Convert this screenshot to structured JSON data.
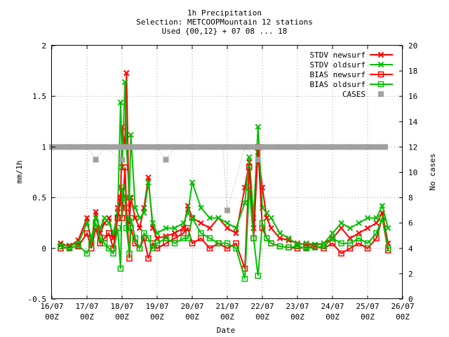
{
  "chart_data": {
    "type": "line",
    "title_lines": [
      "1h Precipitation",
      "Selection: METCOOPMountain     12 stations",
      "Used {00,12} + 07 08 ... 18"
    ],
    "xlabel": "Date",
    "ylabel": "mm/1h",
    "y2label": "No cases",
    "x_ticks": [
      {
        "d": "16/07",
        "h": "00Z"
      },
      {
        "d": "17/07",
        "h": "00Z"
      },
      {
        "d": "18/07",
        "h": "00Z"
      },
      {
        "d": "19/07",
        "h": "00Z"
      },
      {
        "d": "20/07",
        "h": "00Z"
      },
      {
        "d": "21/07",
        "h": "00Z"
      },
      {
        "d": "22/07",
        "h": "00Z"
      },
      {
        "d": "23/07",
        "h": "00Z"
      },
      {
        "d": "24/07",
        "h": "00Z"
      },
      {
        "d": "25/07",
        "h": "00Z"
      },
      {
        "d": "26/07",
        "h": "00Z"
      }
    ],
    "xlim": [
      "16/07 00Z",
      "26/07 00Z"
    ],
    "ylim": [
      -0.5,
      2
    ],
    "y_ticks": [
      "-0.5",
      "0",
      "0.5",
      "1",
      "1.5",
      "2"
    ],
    "y2lim": [
      0,
      20
    ],
    "y2_ticks": [
      "0",
      "2",
      "4",
      "6",
      "8",
      "10",
      "12",
      "14",
      "16",
      "18",
      "20"
    ],
    "grid": true,
    "legend_position": "top-right",
    "series": [
      {
        "name": "STDV newsurf",
        "color": "#ff0000",
        "marker": "x",
        "x": [
          "16/07 06Z",
          "16/07 12Z",
          "16/07 18Z",
          "17/07 00Z",
          "17/07 03Z",
          "17/07 06Z",
          "17/07 09Z",
          "17/07 12Z",
          "17/07 15Z",
          "17/07 18Z",
          "17/07 21Z",
          "17/07 23Z",
          "18/07 00Z",
          "18/07 02Z",
          "18/07 03Z",
          "18/07 05Z",
          "18/07 06Z",
          "18/07 09Z",
          "18/07 12Z",
          "18/07 15Z",
          "18/07 18Z",
          "18/07 21Z",
          "19/07 00Z",
          "19/07 06Z",
          "19/07 12Z",
          "19/07 18Z",
          "19/07 21Z",
          "20/07 00Z",
          "20/07 06Z",
          "20/07 12Z",
          "20/07 18Z",
          "21/07 00Z",
          "21/07 06Z",
          "21/07 12Z",
          "21/07 15Z",
          "21/07 18Z",
          "21/07 21Z",
          "22/07 00Z",
          "22/07 03Z",
          "22/07 06Z",
          "22/07 12Z",
          "22/07 18Z",
          "23/07 00Z",
          "23/07 06Z",
          "23/07 12Z",
          "23/07 18Z",
          "24/07 00Z",
          "24/07 06Z",
          "24/07 12Z",
          "24/07 18Z",
          "25/07 00Z",
          "25/07 06Z",
          "25/07 10Z",
          "25/07 14Z"
        ],
        "y": [
          0.05,
          0.02,
          0.08,
          0.3,
          0.05,
          0.36,
          0.15,
          0.25,
          0.3,
          0.1,
          0.4,
          0.5,
          1.2,
          1.0,
          1.73,
          0.25,
          0.5,
          0.3,
          0.2,
          0.4,
          0.7,
          0.2,
          0.1,
          0.12,
          0.15,
          0.2,
          0.42,
          0.3,
          0.25,
          0.2,
          0.3,
          0.2,
          0.15,
          0.6,
          0.85,
          0.2,
          0.95,
          0.6,
          0.3,
          0.2,
          0.1,
          0.08,
          0.05,
          0.04,
          0.03,
          0.05,
          0.1,
          0.2,
          0.1,
          0.15,
          0.2,
          0.25,
          0.35,
          0.05
        ]
      },
      {
        "name": "STDV oldsurf",
        "color": "#00c000",
        "marker": "x",
        "x": [
          "16/07 06Z",
          "16/07 12Z",
          "16/07 18Z",
          "17/07 00Z",
          "17/07 03Z",
          "17/07 06Z",
          "17/07 09Z",
          "17/07 12Z",
          "17/07 15Z",
          "17/07 18Z",
          "17/07 21Z",
          "17/07 23Z",
          "18/07 00Z",
          "18/07 02Z",
          "18/07 03Z",
          "18/07 05Z",
          "18/07 06Z",
          "18/07 09Z",
          "18/07 12Z",
          "18/07 15Z",
          "18/07 18Z",
          "18/07 21Z",
          "19/07 00Z",
          "19/07 06Z",
          "19/07 12Z",
          "19/07 18Z",
          "19/07 21Z",
          "20/07 00Z",
          "20/07 06Z",
          "20/07 12Z",
          "20/07 18Z",
          "21/07 00Z",
          "21/07 06Z",
          "21/07 12Z",
          "21/07 15Z",
          "21/07 18Z",
          "21/07 21Z",
          "22/07 00Z",
          "22/07 03Z",
          "22/07 06Z",
          "22/07 12Z",
          "22/07 18Z",
          "23/07 00Z",
          "23/07 06Z",
          "23/07 12Z",
          "23/07 18Z",
          "24/07 00Z",
          "24/07 06Z",
          "24/07 12Z",
          "24/07 18Z",
          "25/07 00Z",
          "25/07 06Z",
          "25/07 10Z",
          "25/07 14Z"
        ],
        "y": [
          0.03,
          0.03,
          0.05,
          0.25,
          0.1,
          0.3,
          0.2,
          0.3,
          0.25,
          0.15,
          0.35,
          1.44,
          0.8,
          1.64,
          1.0,
          0.5,
          1.12,
          0.4,
          0.3,
          0.35,
          0.65,
          0.25,
          0.15,
          0.2,
          0.2,
          0.25,
          0.35,
          0.65,
          0.4,
          0.3,
          0.3,
          0.25,
          0.2,
          0.45,
          0.9,
          0.3,
          1.2,
          0.4,
          0.35,
          0.3,
          0.15,
          0.1,
          0.04,
          0.05,
          0.04,
          0.05,
          0.15,
          0.25,
          0.2,
          0.25,
          0.3,
          0.3,
          0.42,
          0.2
        ]
      },
      {
        "name": "BIAS newsurf",
        "color": "#ff0000",
        "marker": "box",
        "x": [
          "16/07 06Z",
          "16/07 12Z",
          "16/07 18Z",
          "17/07 00Z",
          "17/07 03Z",
          "17/07 06Z",
          "17/07 09Z",
          "17/07 12Z",
          "17/07 15Z",
          "17/07 18Z",
          "17/07 21Z",
          "17/07 23Z",
          "18/07 00Z",
          "18/07 02Z",
          "18/07 03Z",
          "18/07 05Z",
          "18/07 06Z",
          "18/07 09Z",
          "18/07 12Z",
          "18/07 15Z",
          "18/07 18Z",
          "18/07 21Z",
          "19/07 00Z",
          "19/07 06Z",
          "19/07 12Z",
          "19/07 18Z",
          "19/07 21Z",
          "20/07 00Z",
          "20/07 06Z",
          "20/07 12Z",
          "20/07 18Z",
          "21/07 00Z",
          "21/07 06Z",
          "21/07 12Z",
          "21/07 15Z",
          "21/07 18Z",
          "21/07 21Z",
          "22/07 00Z",
          "22/07 03Z",
          "22/07 06Z",
          "22/07 12Z",
          "22/07 18Z",
          "23/07 00Z",
          "23/07 06Z",
          "23/07 12Z",
          "23/07 18Z",
          "24/07 00Z",
          "24/07 06Z",
          "24/07 12Z",
          "24/07 18Z",
          "25/07 00Z",
          "25/07 06Z",
          "25/07 10Z",
          "25/07 14Z"
        ],
        "y": [
          0.0,
          0.01,
          0.02,
          0.15,
          0.0,
          0.2,
          0.05,
          0.1,
          0.15,
          0.0,
          0.3,
          0.5,
          0.3,
          0.8,
          0.4,
          -0.1,
          0.2,
          0.05,
          0.0,
          0.1,
          -0.1,
          0.05,
          0.0,
          0.05,
          0.1,
          0.15,
          0.2,
          0.05,
          0.1,
          0.0,
          0.05,
          0.0,
          0.05,
          -0.2,
          0.8,
          0.1,
          1.0,
          0.2,
          0.1,
          0.05,
          0.02,
          0.01,
          0.0,
          0.01,
          0.02,
          0.0,
          0.05,
          -0.05,
          0.0,
          0.05,
          0.0,
          0.1,
          0.3,
          -0.02
        ]
      },
      {
        "name": "BIAS oldsurf",
        "color": "#00c000",
        "marker": "box",
        "x": [
          "16/07 06Z",
          "16/07 12Z",
          "16/07 18Z",
          "17/07 00Z",
          "17/07 03Z",
          "17/07 06Z",
          "17/07 09Z",
          "17/07 12Z",
          "17/07 15Z",
          "17/07 18Z",
          "17/07 21Z",
          "17/07 23Z",
          "18/07 00Z",
          "18/07 02Z",
          "18/07 03Z",
          "18/07 05Z",
          "18/07 06Z",
          "18/07 09Z",
          "18/07 12Z",
          "18/07 15Z",
          "18/07 18Z",
          "18/07 21Z",
          "19/07 00Z",
          "19/07 06Z",
          "19/07 12Z",
          "19/07 18Z",
          "19/07 21Z",
          "20/07 00Z",
          "20/07 06Z",
          "20/07 12Z",
          "20/07 18Z",
          "21/07 00Z",
          "21/07 06Z",
          "21/07 12Z",
          "21/07 15Z",
          "21/07 18Z",
          "21/07 21Z",
          "22/07 00Z",
          "22/07 03Z",
          "22/07 06Z",
          "22/07 12Z",
          "22/07 18Z",
          "23/07 00Z",
          "23/07 06Z",
          "23/07 12Z",
          "23/07 18Z",
          "24/07 00Z",
          "24/07 06Z",
          "24/07 12Z",
          "24/07 18Z",
          "25/07 00Z",
          "25/07 06Z",
          "25/07 10Z",
          "25/07 14Z"
        ],
        "y": [
          0.02,
          0.0,
          0.03,
          -0.05,
          0.05,
          0.25,
          0.1,
          0.05,
          0.0,
          -0.05,
          0.2,
          -0.2,
          0.6,
          0.5,
          0.2,
          -0.05,
          0.3,
          0.1,
          0.0,
          0.15,
          0.1,
          0.0,
          0.05,
          0.1,
          0.05,
          0.1,
          0.1,
          0.3,
          0.15,
          0.1,
          0.05,
          0.05,
          0.0,
          -0.3,
          0.6,
          0.1,
          -0.27,
          0.25,
          0.1,
          0.05,
          0.02,
          0.01,
          0.02,
          0.0,
          0.01,
          0.02,
          0.1,
          0.05,
          0.05,
          0.1,
          0.05,
          0.15,
          0.3,
          0.0
        ]
      },
      {
        "name": "CASES",
        "color": "#a0a0a0",
        "marker": "filled-box",
        "axis": "y2",
        "x": [
          "16/07 00Z",
          "16/07 12Z",
          "17/07 00Z",
          "17/07 06Z",
          "17/07 12Z",
          "18/07 00Z",
          "18/07 12Z",
          "19/07 00Z",
          "19/07 06Z",
          "19/07 12Z",
          "20/07 00Z",
          "20/07 12Z",
          "20/07 21Z",
          "21/07 00Z",
          "21/07 12Z",
          "21/07 21Z",
          "22/07 00Z",
          "22/07 12Z",
          "23/07 00Z",
          "23/07 12Z",
          "24/07 00Z",
          "24/07 12Z",
          "25/07 00Z",
          "25/07 12Z"
        ],
        "y": [
          12,
          12,
          12,
          11,
          12,
          11,
          12,
          12,
          11,
          12,
          12,
          12,
          12,
          7,
          12,
          11,
          12,
          12,
          12,
          12,
          12,
          12,
          12,
          12
        ]
      }
    ]
  }
}
